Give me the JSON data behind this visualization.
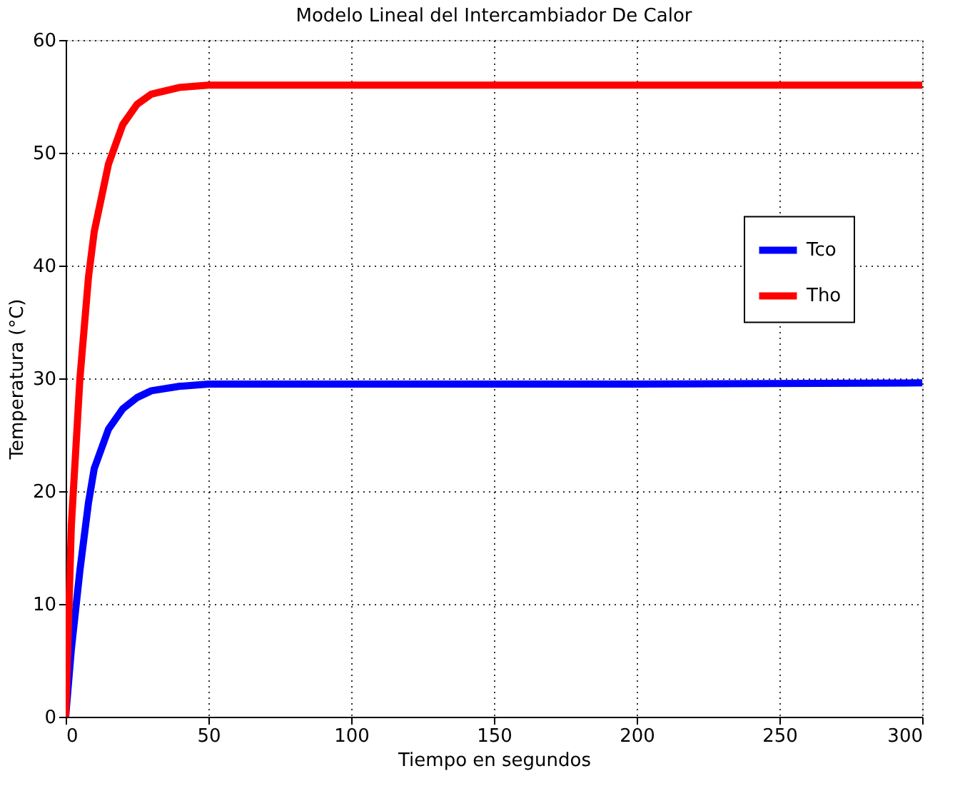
{
  "chart_data": {
    "type": "line",
    "title": "Modelo Lineal del Intercambiador De Calor",
    "xlabel": "Tiempo en segundos",
    "ylabel": "Temperatura (°C)",
    "x": [
      0,
      2,
      5,
      8,
      10,
      15,
      20,
      25,
      30,
      40,
      50,
      100,
      200,
      300
    ],
    "series": [
      {
        "name": "Tco",
        "color": "#0000ff",
        "values": [
          0,
          6,
          13,
          19,
          22,
          25.5,
          27.3,
          28.3,
          28.9,
          29.3,
          29.5,
          29.5,
          29.5,
          29.6
        ]
      },
      {
        "name": "Tho",
        "color": "#ff0000",
        "values": [
          0,
          17,
          30,
          39,
          43,
          49,
          52.5,
          54.3,
          55.2,
          55.8,
          56,
          56,
          56,
          56
        ]
      }
    ],
    "xlim": [
      0,
      300
    ],
    "xticks": [
      0,
      50,
      100,
      150,
      200,
      250,
      300
    ],
    "ylim": [
      0,
      60
    ],
    "yticks": [
      0,
      10,
      20,
      30,
      40,
      50,
      60
    ],
    "grid": true,
    "legend": "right",
    "line_style": "solid",
    "marker": "none"
  }
}
